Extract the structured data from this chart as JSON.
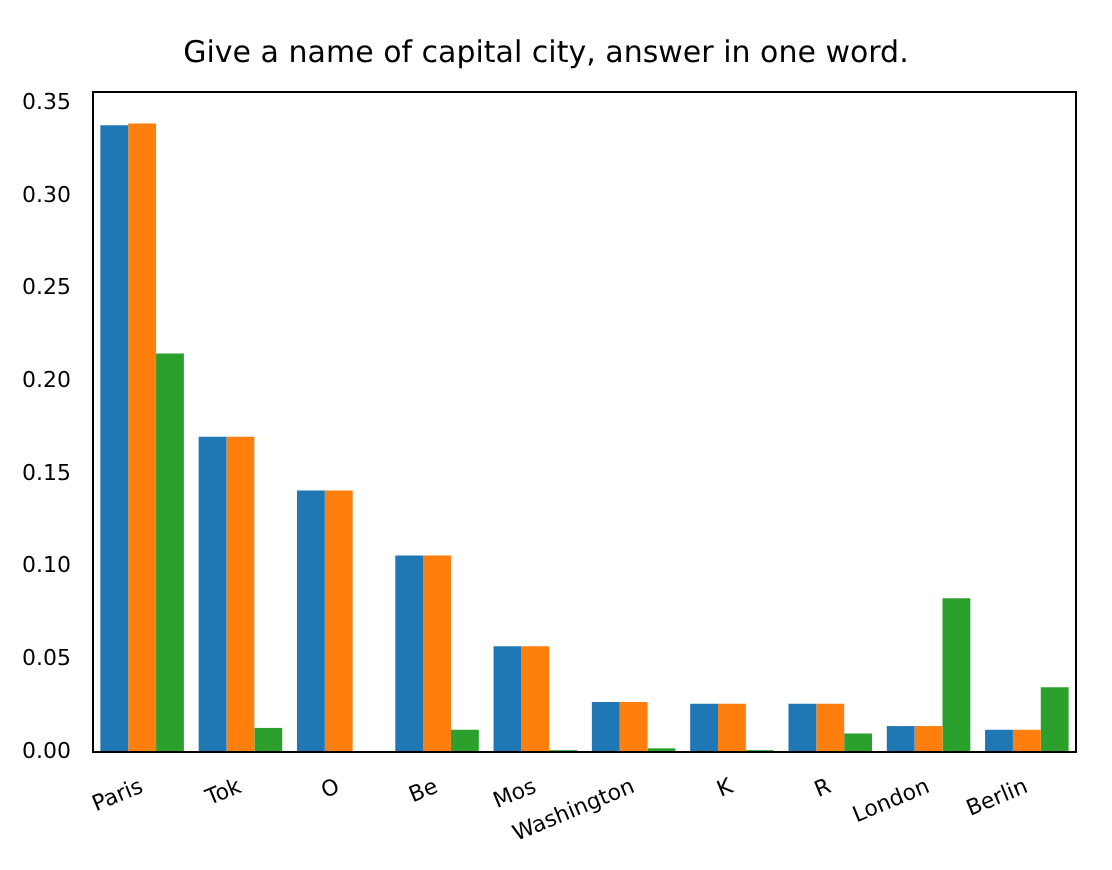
{
  "chart_data": {
    "type": "bar",
    "title": "Give a name of capital city, answer in one word.",
    "categories": [
      "Paris",
      "Tok",
      "O",
      "Be",
      "Mos",
      "Washington",
      "K",
      "R",
      "London",
      "Berlin"
    ],
    "series": [
      {
        "color": "#1f77b4",
        "values": [
          0.338,
          0.17,
          0.141,
          0.106,
          0.057,
          0.027,
          0.026,
          0.026,
          0.014,
          0.012
        ]
      },
      {
        "color": "#ff7f0e",
        "values": [
          0.339,
          0.17,
          0.141,
          0.106,
          0.057,
          0.027,
          0.026,
          0.026,
          0.014,
          0.012
        ]
      },
      {
        "color": "#2ca02c",
        "values": [
          0.215,
          0.013,
          0,
          0.012,
          0.001,
          0.002,
          0.001,
          0.01,
          0.083,
          0.035
        ]
      }
    ],
    "ylim": [
      0,
      0.356
    ],
    "yticks": [
      {
        "value": 0,
        "label": "0.00"
      },
      {
        "value": 0.05,
        "label": "0.05"
      },
      {
        "value": 0.1,
        "label": "0.10"
      },
      {
        "value": 0.15,
        "label": "0.15"
      },
      {
        "value": 0.2,
        "label": "0.20"
      },
      {
        "value": 0.25,
        "label": "0.25"
      },
      {
        "value": 0.3,
        "label": "0.30"
      },
      {
        "value": 0.35,
        "label": "0.35"
      }
    ],
    "grid": false,
    "legend": false
  }
}
